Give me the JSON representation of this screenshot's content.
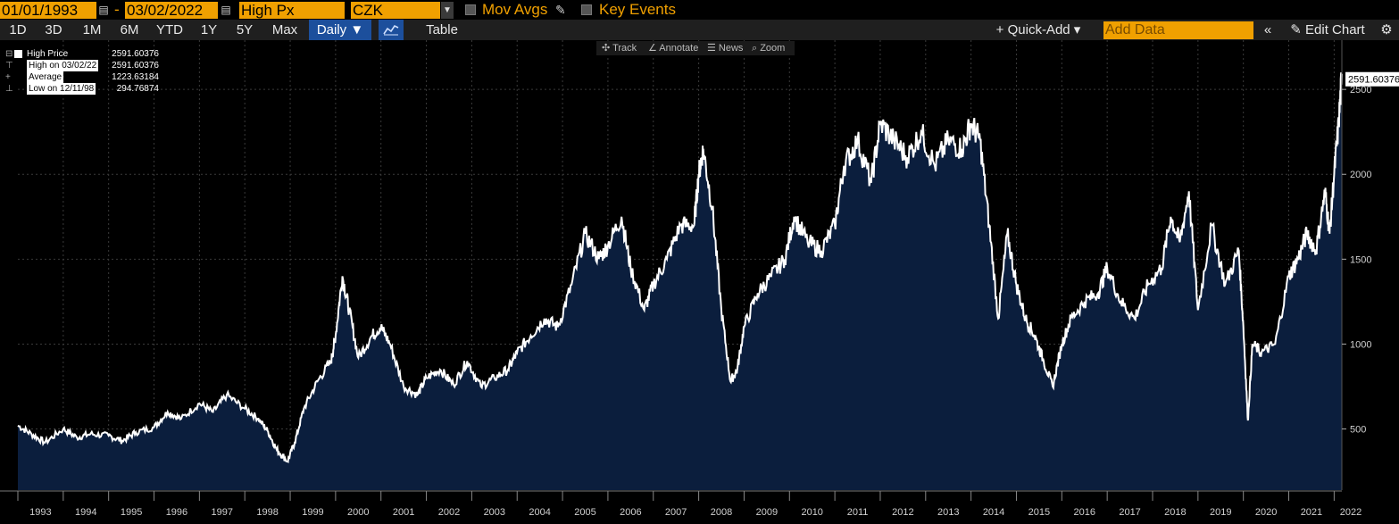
{
  "toolbar": {
    "start_date": "01/01/1993",
    "separator": "-",
    "end_date": "03/02/2022",
    "field": "High Px",
    "currency": "CZK",
    "mov_avgs_label": "Mov Avgs",
    "key_events_label": "Key Events"
  },
  "periods": [
    "1D",
    "3D",
    "1M",
    "6M",
    "YTD",
    "1Y",
    "5Y",
    "Max"
  ],
  "frequency": "Daily ▼",
  "table_label": "Table",
  "quick_add_label": "+ Quick-Add ▾",
  "add_data_placeholder": "Add Data",
  "edit_chart_label": "✎ Edit Chart",
  "chart_tools": {
    "track": "✣ Track",
    "annotate": "∠ Annotate",
    "news": "☰ News",
    "zoom": "⌕ Zoom"
  },
  "legend": [
    {
      "label": "High Price",
      "value": "2591.60376"
    },
    {
      "label": "High on 03/02/22",
      "value": "2591.60376"
    },
    {
      "label": "Average",
      "value": "1223.63184"
    },
    {
      "label": "Low on 12/11/98",
      "value": "294.76874"
    }
  ],
  "last_price_label": "2591.60376",
  "colors": {
    "accent": "#f0a000",
    "area_fill": "#0b1e3d",
    "line": "#ffffff",
    "active": "#1c4f9c"
  },
  "chart_data": {
    "type": "area",
    "title": "",
    "xlabel": "",
    "ylabel": "",
    "x_ticks": [
      "1993",
      "1994",
      "1995",
      "1996",
      "1997",
      "1998",
      "1999",
      "2000",
      "2001",
      "2002",
      "2003",
      "2004",
      "2005",
      "2006",
      "2007",
      "2008",
      "2009",
      "2010",
      "2011",
      "2012",
      "2013",
      "2014",
      "2015",
      "2016",
      "2017",
      "2018",
      "2019",
      "2020",
      "2021",
      "2022"
    ],
    "y_ticks": [
      500,
      1000,
      1500,
      2000,
      2500
    ],
    "ylim": [
      140,
      2790
    ],
    "xlim": [
      1993.0,
      2022.17
    ],
    "series": [
      {
        "name": "High Price",
        "x": [
          1993.0,
          1993.3,
          1993.6,
          1994.0,
          1994.3,
          1994.6,
          1995.0,
          1995.3,
          1995.6,
          1996.0,
          1996.3,
          1996.6,
          1997.0,
          1997.3,
          1997.6,
          1998.0,
          1998.3,
          1998.5,
          1998.7,
          1998.94,
          1999.1,
          1999.3,
          1999.6,
          1999.9,
          2000.0,
          2000.15,
          2000.3,
          2000.5,
          2000.8,
          2001.0,
          2001.2,
          2001.5,
          2001.8,
          2002.0,
          2002.3,
          2002.6,
          2002.9,
          2003.2,
          2003.5,
          2003.8,
          2004.0,
          2004.3,
          2004.6,
          2004.9,
          2005.2,
          2005.5,
          2005.8,
          2006.0,
          2006.3,
          2006.5,
          2006.8,
          2007.0,
          2007.3,
          2007.6,
          2007.9,
          2008.0,
          2008.1,
          2008.3,
          2008.5,
          2008.7,
          2008.85,
          2009.0,
          2009.3,
          2009.6,
          2009.9,
          2010.1,
          2010.4,
          2010.7,
          2011.0,
          2011.2,
          2011.5,
          2011.8,
          2012.0,
          2012.3,
          2012.6,
          2012.9,
          2013.2,
          2013.5,
          2013.8,
          2014.0,
          2014.2,
          2014.4,
          2014.6,
          2014.8,
          2015.0,
          2015.2,
          2015.4,
          2015.6,
          2015.8,
          2016.0,
          2016.2,
          2016.5,
          2016.8,
          2017.0,
          2017.3,
          2017.6,
          2017.9,
          2018.2,
          2018.4,
          2018.6,
          2018.8,
          2019.0,
          2019.3,
          2019.6,
          2019.9,
          2020.0,
          2020.1,
          2020.2,
          2020.4,
          2020.7,
          2021.0,
          2021.2,
          2021.4,
          2021.6,
          2021.8,
          2021.9,
          2022.0,
          2022.1,
          2022.17
        ],
        "y": [
          520,
          470,
          420,
          500,
          450,
          470,
          460,
          430,
          480,
          510,
          600,
          560,
          650,
          600,
          700,
          620,
          560,
          490,
          380,
          310,
          420,
          620,
          780,
          900,
          1050,
          1400,
          1200,
          920,
          1050,
          1100,
          1000,
          750,
          700,
          800,
          850,
          760,
          900,
          750,
          800,
          850,
          950,
          1050,
          1150,
          1100,
          1350,
          1650,
          1500,
          1580,
          1750,
          1450,
          1200,
          1350,
          1500,
          1700,
          1700,
          2000,
          2150,
          1800,
          1200,
          780,
          850,
          1100,
          1300,
          1400,
          1500,
          1750,
          1600,
          1550,
          1700,
          2050,
          2200,
          1950,
          2300,
          2200,
          2100,
          2250,
          2050,
          2200,
          2150,
          2300,
          2200,
          1700,
          1150,
          1650,
          1350,
          1150,
          1050,
          900,
          750,
          1000,
          1150,
          1250,
          1300,
          1450,
          1250,
          1150,
          1350,
          1450,
          1750,
          1600,
          1900,
          1200,
          1700,
          1350,
          1550,
          1100,
          550,
          1000,
          950,
          1000,
          1400,
          1500,
          1650,
          1550,
          1900,
          1650,
          2000,
          2300,
          2591.6
        ]
      }
    ]
  }
}
